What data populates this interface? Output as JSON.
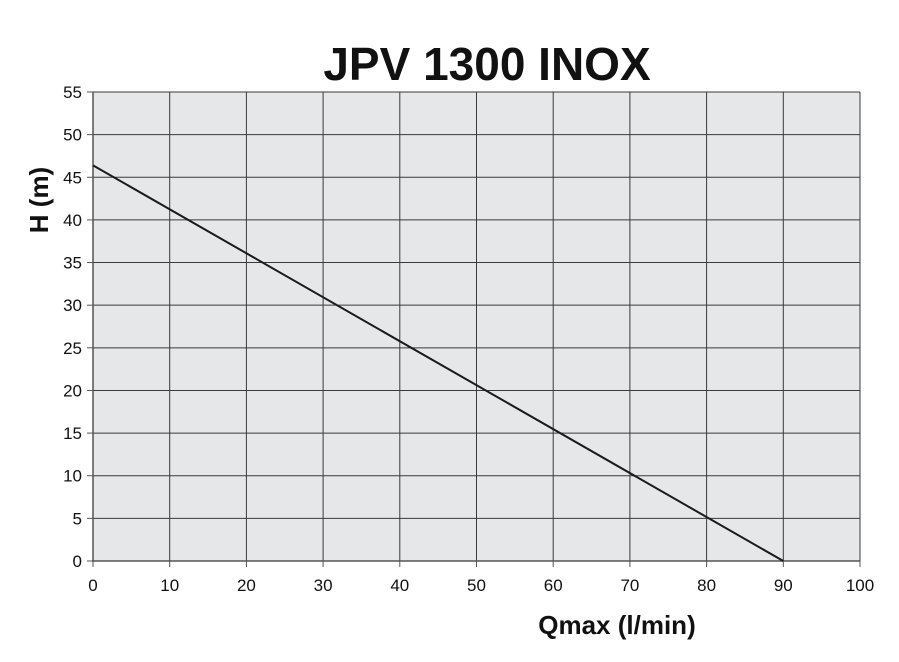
{
  "chart_data": {
    "type": "line",
    "title": "JPV 1300 INOX",
    "xlabel": "Qmax (l/min)",
    "ylabel": "H (m)",
    "xlim": [
      0,
      100
    ],
    "ylim": [
      0,
      55
    ],
    "x_ticks": [
      0,
      10,
      20,
      30,
      40,
      50,
      60,
      70,
      80,
      90,
      100
    ],
    "y_ticks": [
      0,
      5,
      10,
      15,
      20,
      25,
      30,
      35,
      40,
      45,
      50,
      55
    ],
    "grid": true,
    "series": [
      {
        "x": [
          0,
          90
        ],
        "y": [
          46.4,
          0
        ]
      }
    ],
    "colors": {
      "plot_background": "#e6e7e9",
      "grid": "#3a3a3a",
      "line": "#1a1a1a",
      "axis": "#555555"
    }
  }
}
